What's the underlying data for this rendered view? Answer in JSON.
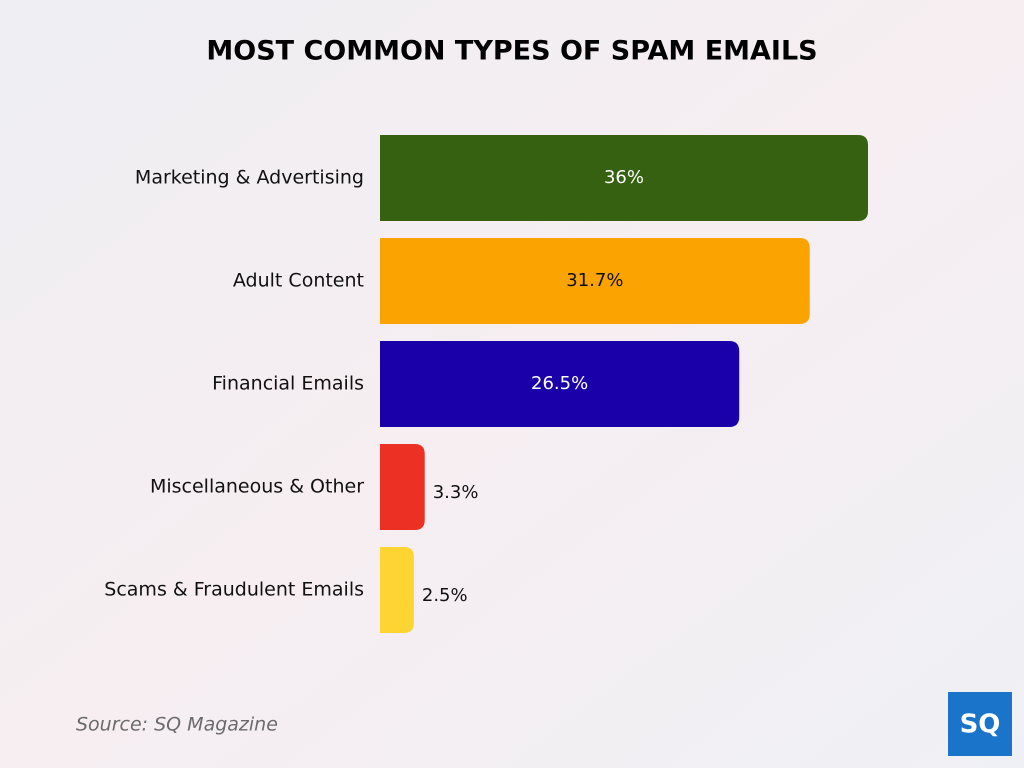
{
  "chart_data": {
    "type": "bar",
    "orientation": "horizontal",
    "title": "MOST COMMON TYPES OF SPAM EMAILS",
    "categories": [
      "Marketing & Advertising",
      "Adult Content",
      "Financial Emails",
      "Miscellaneous & Other",
      "Scams & Fraudulent Emails"
    ],
    "values": [
      36,
      31.7,
      26.5,
      3.3,
      2.5
    ],
    "value_labels": [
      "36%",
      "31.7%",
      "26.5%",
      "3.3%",
      "2.5%"
    ],
    "colors": [
      "#366111",
      "#fba300",
      "#1a00a8",
      "#ec3023",
      "#fed433"
    ],
    "source": "Source: SQ Magazine"
  },
  "logo": "SQ"
}
